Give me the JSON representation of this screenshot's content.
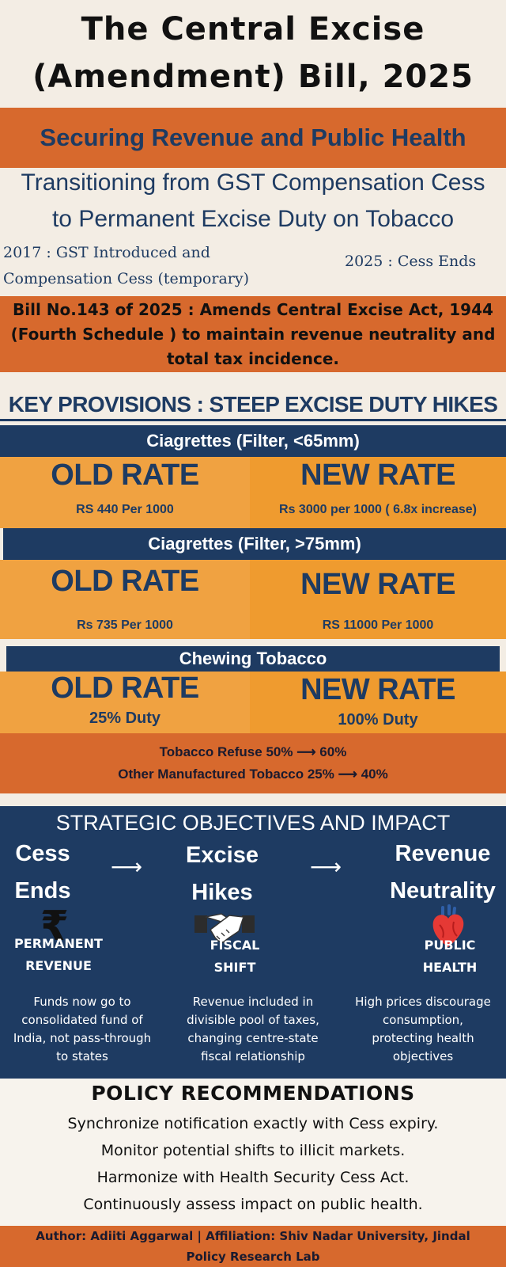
{
  "title": {
    "line1": "The Central Excise",
    "line2": "(Amendment) Bill, 2025"
  },
  "subtitle": "Securing Revenue and Public Health",
  "transition": {
    "line1": "Transitioning from GST Compensation Cess",
    "line2": "to Permanent Excise Duty on Tobacco"
  },
  "timeline": {
    "left_line1": "2017 : GST Introduced and",
    "left_line2": "Compensation Cess (temporary)",
    "right": "2025 : Cess Ends"
  },
  "bill": {
    "line1": "Bill No.143 of 2025 : Amends Central Excise Act, 1944",
    "line2": "(Fourth Schedule ) to maintain revenue neutrality and",
    "line3": "total tax incidence."
  },
  "key_provisions_heading": "KEY PROVISIONS : STEEP EXCISE DUTY HIKES",
  "provisions": [
    {
      "category": "Ciagrettes (Filter, <65mm)",
      "old_label": "OLD RATE",
      "old_value": "RS 440 Per 1000",
      "new_label": "NEW RATE",
      "new_value": "Rs 3000 per 1000 ( 6.8x increase)"
    },
    {
      "category": "Ciagrettes (Filter, >75mm)",
      "old_label": "OLD RATE",
      "old_value": "Rs 735 Per 1000",
      "new_label": "NEW RATE",
      "new_value": "RS 11000 Per 1000"
    },
    {
      "category": "Chewing Tobacco",
      "old_label": "OLD RATE",
      "old_value": "25% Duty",
      "new_label": "NEW RATE",
      "new_value": "100% Duty"
    }
  ],
  "other_rates": {
    "line1": "Tobacco Refuse 50% ⟶ 60%",
    "line2": "Other Manufactured Tobacco 25% ⟶ 40%"
  },
  "strategic": {
    "title": "STRATEGIC OBJECTIVES AND IMPACT",
    "flow": [
      {
        "line1": "Cess",
        "line2": "Ends"
      },
      {
        "line1": "Excise",
        "line2": "Hikes"
      },
      {
        "line1": "Revenue",
        "line2": "Neutrality"
      }
    ],
    "arrow": "⟶",
    "rupee": "₹",
    "columns": [
      {
        "head1": "PERMANENT",
        "head2": "REVENUE",
        "desc": [
          "Funds now go to",
          "consolidated fund of",
          "India, not pass-through",
          "to states"
        ],
        "icon": "rupee-icon"
      },
      {
        "head1": "FISCAL",
        "head2": "SHIFT",
        "desc": [
          "Revenue included in",
          "divisible pool of taxes,",
          "changing centre-state",
          "fiscal relationship"
        ],
        "icon": "handshake-icon"
      },
      {
        "head1": "PUBLIC",
        "head2": "HEALTH",
        "desc": [
          "High prices discourage",
          "consumption,",
          "protecting health",
          "objectives"
        ],
        "icon": "heart-icon"
      }
    ]
  },
  "policy": {
    "heading": "POLICY RECOMMENDATIONS",
    "items": [
      "Synchronize notification exactly with Cess expiry.",
      "Monitor potential shifts to illicit markets.",
      "Harmonize with Health Security Cess Act.",
      "Continuously assess impact on public health."
    ]
  },
  "author": {
    "line1": "Author: Adiiti Aggarwal | Affiliation: Shiv Nadar University, Jindal",
    "line2": "Policy Research Lab"
  },
  "colors": {
    "navy": "#1e3b62",
    "orange": "#d7692d",
    "amber": "#f0a241",
    "cream": "#f3ede4"
  }
}
